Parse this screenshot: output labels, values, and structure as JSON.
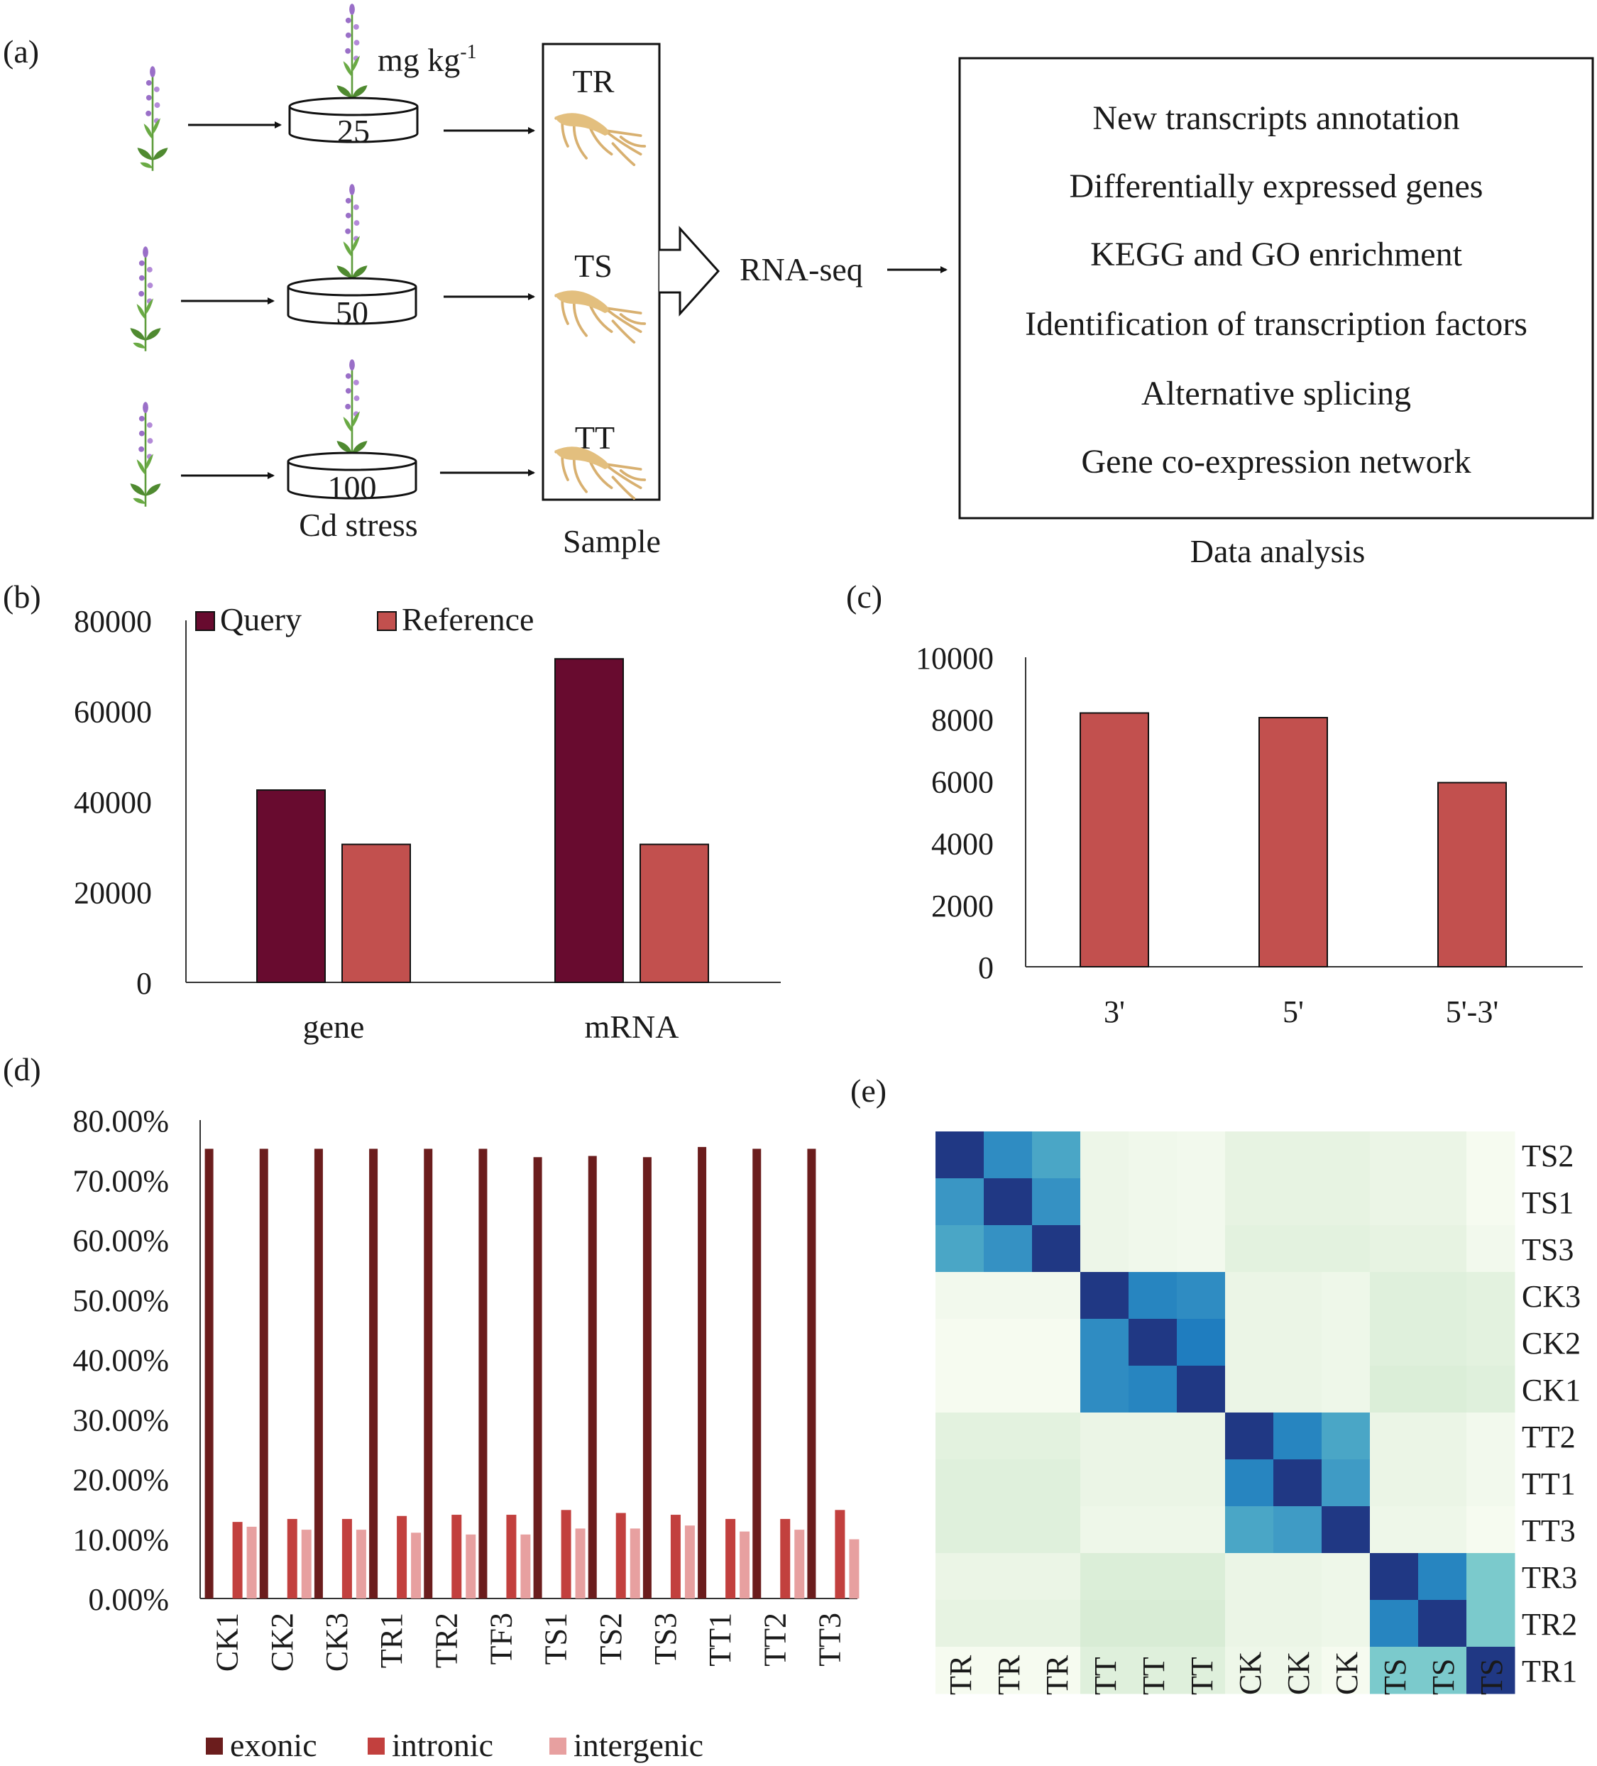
{
  "panels": {
    "a": "(a)",
    "b": "(b)",
    "c": "(c)",
    "d": "(d)",
    "e": "(e)"
  },
  "panel_a": {
    "unit_label": "mg kg",
    "unit_superscript": "-1",
    "doses": [
      "25",
      "50",
      "100"
    ],
    "cd_stress_label": "Cd stress",
    "samples": [
      "TR",
      "TS",
      "TT"
    ],
    "sample_label": "Sample",
    "rnaseq_label": "RNA-seq",
    "analysis_items": [
      "New transcripts annotation",
      "Differentially expressed genes",
      "KEGG and GO enrichment",
      "Identification of transcription factors",
      "Alternative splicing",
      "Gene co-expression network"
    ],
    "data_analysis_label": "Data analysis",
    "colors": {
      "plant_leaf": "#5e9c3c",
      "plant_flower": "#9a6fc8",
      "root": "#d8b070"
    }
  },
  "chart_data": [
    {
      "panel": "b",
      "type": "bar",
      "categories": [
        "gene",
        "mRNA"
      ],
      "series": [
        {
          "name": "Query",
          "values": [
            42500,
            71500
          ],
          "color": "#680b2f"
        },
        {
          "name": "Reference",
          "values": [
            30500,
            30500
          ],
          "color": "#c2504e"
        }
      ],
      "ylim": [
        0,
        80000
      ],
      "yticks": [
        "0",
        "20000",
        "40000",
        "60000",
        "80000"
      ],
      "legend_position": "top"
    },
    {
      "panel": "c",
      "type": "bar",
      "categories": [
        "3'",
        "5'",
        "5'-3'"
      ],
      "values": [
        8200,
        8050,
        5950
      ],
      "color": "#c2504e",
      "ylim": [
        0,
        10000
      ],
      "yticks": [
        "0",
        "2000",
        "4000",
        "6000",
        "8000",
        "10000"
      ]
    },
    {
      "panel": "d",
      "type": "bar",
      "categories": [
        "CK1",
        "CK2",
        "CK3",
        "TR1",
        "TR2",
        "TF3",
        "TS1",
        "TS2",
        "TS3",
        "TT1",
        "TT2",
        "TT3"
      ],
      "series": [
        {
          "name": "exonic",
          "values": [
            75.2,
            75.2,
            75.2,
            75.2,
            75.2,
            75.2,
            73.8,
            74.0,
            73.8,
            75.5,
            75.2,
            75.2
          ],
          "color": "#6b1d1d"
        },
        {
          "name": "intronic",
          "values": [
            12.8,
            13.3,
            13.3,
            13.8,
            14.0,
            14.0,
            14.8,
            14.3,
            14.0,
            13.3,
            13.3,
            14.8
          ],
          "color": "#c2403e"
        },
        {
          "name": "intergenic",
          "values": [
            12.0,
            11.5,
            11.5,
            11.0,
            10.7,
            10.7,
            11.7,
            11.7,
            12.2,
            11.2,
            11.5,
            9.9
          ],
          "color": "#e7a0a0"
        }
      ],
      "ylim": [
        0,
        80
      ],
      "yticks": [
        "0.00%",
        "10.00%",
        "20.00%",
        "30.00%",
        "40.00%",
        "50.00%",
        "60.00%",
        "70.00%",
        "80.00%"
      ],
      "legend_position": "bottom"
    },
    {
      "panel": "e",
      "type": "heatmap",
      "row_labels": [
        "TS2",
        "TS1",
        "TS3",
        "CK3",
        "CK2",
        "CK1",
        "TT2",
        "TT1",
        "TT3",
        "TR3",
        "TR2",
        "TR1"
      ],
      "col_labels": [
        "TR",
        "TR",
        "TR",
        "TT",
        "TT",
        "TT",
        "CK",
        "CK",
        "CK",
        "TS",
        "TS",
        "TS"
      ],
      "values": [
        [
          1.0,
          0.82,
          0.72,
          0.15,
          0.13,
          0.12,
          0.18,
          0.18,
          0.18,
          0.16,
          0.16,
          0.1
        ],
        [
          0.78,
          1.0,
          0.8,
          0.15,
          0.13,
          0.12,
          0.18,
          0.18,
          0.18,
          0.16,
          0.16,
          0.1
        ],
        [
          0.72,
          0.8,
          1.0,
          0.15,
          0.13,
          0.12,
          0.2,
          0.2,
          0.2,
          0.18,
          0.18,
          0.12
        ],
        [
          0.12,
          0.12,
          0.12,
          1.0,
          0.85,
          0.82,
          0.16,
          0.16,
          0.14,
          0.22,
          0.22,
          0.2
        ],
        [
          0.1,
          0.1,
          0.1,
          0.82,
          1.0,
          0.88,
          0.16,
          0.16,
          0.14,
          0.22,
          0.22,
          0.2
        ],
        [
          0.1,
          0.1,
          0.1,
          0.82,
          0.85,
          1.0,
          0.16,
          0.16,
          0.14,
          0.24,
          0.24,
          0.22
        ],
        [
          0.2,
          0.2,
          0.2,
          0.16,
          0.16,
          0.16,
          1.0,
          0.85,
          0.72,
          0.16,
          0.16,
          0.12
        ],
        [
          0.22,
          0.22,
          0.22,
          0.16,
          0.16,
          0.16,
          0.85,
          1.0,
          0.76,
          0.16,
          0.16,
          0.12
        ],
        [
          0.22,
          0.22,
          0.22,
          0.14,
          0.14,
          0.14,
          0.72,
          0.76,
          1.0,
          0.14,
          0.14,
          0.1
        ],
        [
          0.16,
          0.16,
          0.16,
          0.24,
          0.24,
          0.24,
          0.16,
          0.16,
          0.14,
          1.0,
          0.85,
          0.55
        ],
        [
          0.18,
          0.18,
          0.18,
          0.26,
          0.26,
          0.26,
          0.16,
          0.16,
          0.14,
          0.85,
          1.0,
          0.55
        ],
        [
          0.1,
          0.1,
          0.1,
          0.22,
          0.22,
          0.22,
          0.14,
          0.14,
          0.1,
          0.55,
          0.55,
          1.0
        ]
      ]
    }
  ]
}
